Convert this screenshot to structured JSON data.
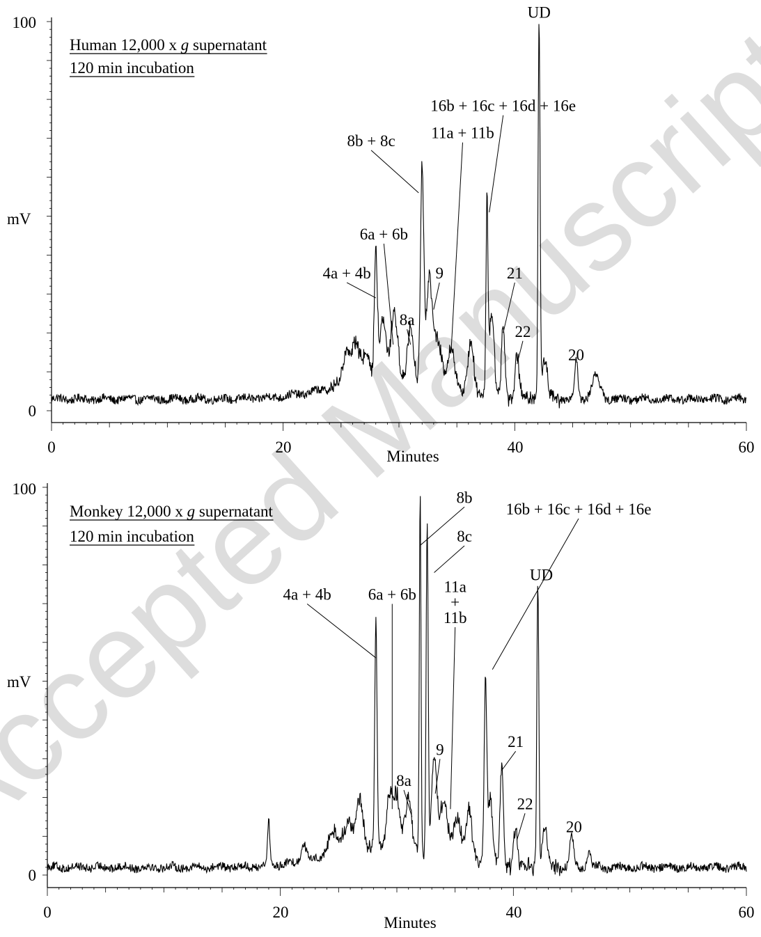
{
  "watermark": "Accepted Manuscript",
  "chart_data": [
    {
      "type": "line",
      "title_line1_a": "Human 12,000 x ",
      "title_line1_g": "g",
      "title_line1_b": " supernatant",
      "title_line2": "120 min incubation",
      "xlabel": "Minutes",
      "ylabel": "mV",
      "xlim": [
        0,
        60
      ],
      "ylim": [
        0,
        100
      ],
      "x_ticks": [
        "0",
        "20",
        "40",
        "60"
      ],
      "y_ticks": [
        "0",
        "100"
      ],
      "baseline": 3,
      "peaks": [
        [
          25.5,
          8,
          0.5
        ],
        [
          26.3,
          9,
          0.5
        ],
        [
          27.2,
          7,
          0.4
        ],
        [
          28.0,
          33,
          0.18
        ],
        [
          28.6,
          15,
          0.4
        ],
        [
          29.6,
          18,
          0.4
        ],
        [
          31.0,
          14,
          0.35
        ],
        [
          32.0,
          55,
          0.2
        ],
        [
          32.6,
          26,
          0.35
        ],
        [
          33.3,
          12,
          0.5
        ],
        [
          34.5,
          10,
          0.5
        ],
        [
          36.2,
          14,
          0.35
        ],
        [
          37.6,
          48,
          0.12
        ],
        [
          38.0,
          22,
          0.3
        ],
        [
          39.0,
          19,
          0.2
        ],
        [
          40.2,
          12,
          0.25
        ],
        [
          42.1,
          98,
          0.12
        ],
        [
          42.6,
          10,
          0.3
        ],
        [
          45.3,
          10,
          0.2
        ],
        [
          47.0,
          6,
          0.5
        ]
      ],
      "annotations": [
        {
          "text": "UD",
          "x": 42.1,
          "y": 98,
          "tx": 42.1,
          "ty": 101,
          "line": false
        },
        {
          "text": "16b + 16c + 16d + 16e",
          "x": 37.8,
          "y": 51,
          "tx": 39.0,
          "ty": 77,
          "line": true
        },
        {
          "text": "11a + 11b",
          "x": 34.5,
          "y": 15,
          "tx": 35.5,
          "ty": 70,
          "line": true
        },
        {
          "text": "8b + 8c",
          "x": 31.7,
          "y": 56,
          "tx": 27.6,
          "ty": 68,
          "line": true
        },
        {
          "text": "6a + 6b",
          "x": 29.5,
          "y": 17,
          "tx": 28.7,
          "ty": 44,
          "line": true
        },
        {
          "text": "4a + 4b",
          "x": 28.0,
          "y": 29,
          "tx": 25.5,
          "ty": 34,
          "line": true
        },
        {
          "text": "9",
          "x": 33.0,
          "y": 26,
          "tx": 33.5,
          "ty": 34,
          "line": true
        },
        {
          "text": "8a",
          "x": 31.0,
          "y": 17,
          "tx": 30.7,
          "ty": 22,
          "line": true
        },
        {
          "text": "21",
          "x": 39.0,
          "y": 20,
          "tx": 40.0,
          "ty": 34,
          "line": true
        },
        {
          "text": "22",
          "x": 40.2,
          "y": 12,
          "tx": 40.7,
          "ty": 19,
          "line": true
        },
        {
          "text": "20",
          "x": 45.3,
          "y": 11,
          "tx": 45.3,
          "ty": 13,
          "line": false
        }
      ]
    },
    {
      "type": "line",
      "title_line1_a": "Monkey 12,000 x ",
      "title_line1_g": "g",
      "title_line1_b": " supernatant",
      "title_line2": "120 min incubation",
      "xlabel": "Minutes",
      "ylabel": "mV",
      "xlim": [
        0,
        60
      ],
      "ylim": [
        0,
        100
      ],
      "x_ticks": [
        "0",
        "20",
        "40",
        "60"
      ],
      "y_ticks": [
        "0",
        "100"
      ],
      "baseline": 2,
      "peaks": [
        [
          19.0,
          11,
          0.15
        ],
        [
          22.0,
          5,
          0.3
        ],
        [
          24.5,
          6,
          0.6
        ],
        [
          25.8,
          8,
          0.5
        ],
        [
          26.8,
          13,
          0.4
        ],
        [
          28.2,
          58,
          0.14
        ],
        [
          29.4,
          14,
          0.35
        ],
        [
          30.0,
          14,
          0.35
        ],
        [
          31.0,
          13,
          0.4
        ],
        [
          32.0,
          93,
          0.1
        ],
        [
          32.6,
          84,
          0.12
        ],
        [
          33.2,
          24,
          0.3
        ],
        [
          34.0,
          14,
          0.5
        ],
        [
          35.2,
          10,
          0.5
        ],
        [
          36.2,
          14,
          0.35
        ],
        [
          37.6,
          45,
          0.15
        ],
        [
          38.0,
          18,
          0.3
        ],
        [
          39.0,
          26,
          0.2
        ],
        [
          40.2,
          10,
          0.25
        ],
        [
          42.1,
          73,
          0.12
        ],
        [
          42.7,
          10,
          0.3
        ],
        [
          45.0,
          8,
          0.25
        ],
        [
          46.5,
          5,
          0.2
        ]
      ],
      "annotations": [
        {
          "text": "8b",
          "x": 32.0,
          "y": 85,
          "tx": 35.8,
          "ty": 96,
          "line": true
        },
        {
          "text": "8c",
          "x": 33.2,
          "y": 78,
          "tx": 35.8,
          "ty": 86,
          "line": true
        },
        {
          "text": "16b + 16c + 16d + 16e",
          "x": 38.2,
          "y": 53,
          "tx": 45.6,
          "ty": 93,
          "line": true
        },
        {
          "text": "4a + 4b",
          "x": 28.2,
          "y": 56,
          "tx": 22.3,
          "ty": 71,
          "line": true
        },
        {
          "text": "6a + 6b",
          "x": 29.6,
          "y": 17,
          "tx": 29.6,
          "ty": 71,
          "line": true
        },
        {
          "text": "11a",
          "x": 34.6,
          "y": 17,
          "tx": 35.0,
          "ty": 73,
          "line": false
        },
        {
          "text": "+",
          "x": 34.6,
          "y": 17,
          "tx": 35.0,
          "ty": 69,
          "line": false
        },
        {
          "text": "11b",
          "x": 34.6,
          "y": 17,
          "tx": 35.0,
          "ty": 65,
          "line": true
        },
        {
          "text": "UD",
          "x": 42.1,
          "y": 73,
          "tx": 42.4,
          "ty": 76,
          "line": false
        },
        {
          "text": "9",
          "x": 33.3,
          "y": 21,
          "tx": 33.7,
          "ty": 31,
          "line": true
        },
        {
          "text": "8a",
          "x": 31.3,
          "y": 15,
          "tx": 30.6,
          "ty": 23,
          "line": true
        },
        {
          "text": "21",
          "x": 39.0,
          "y": 27,
          "tx": 40.2,
          "ty": 33,
          "line": true
        },
        {
          "text": "22",
          "x": 40.3,
          "y": 9,
          "tx": 41.0,
          "ty": 17,
          "line": true
        },
        {
          "text": "20",
          "x": 45.0,
          "y": 8,
          "tx": 45.2,
          "ty": 11,
          "line": false
        }
      ]
    }
  ]
}
